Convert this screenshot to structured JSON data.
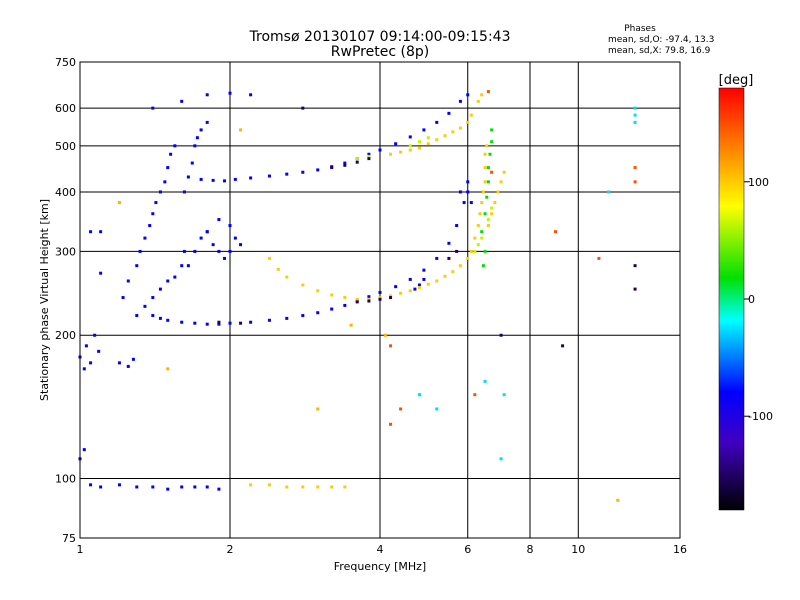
{
  "chart_data": {
    "type": "scatter",
    "title": "Tromsø 20130107 09:14:00-09:15:43",
    "subtitle": "RwPretec (8p)",
    "xlabel": "Frequency [MHz]",
    "ylabel": "Stationary phase Virtual Height [km]",
    "x_scale": "log2",
    "y_scale": "log",
    "xlim": [
      1,
      16
    ],
    "ylim": [
      75,
      750
    ],
    "x_ticks": [
      "1",
      "2",
      "4",
      "6",
      "8",
      "10",
      "16"
    ],
    "x_tick_values": [
      1,
      2,
      4,
      6,
      8,
      10,
      16
    ],
    "x_grid_values": [
      1,
      2,
      4,
      6,
      8,
      10,
      16
    ],
    "y_ticks": [
      "75",
      "100",
      "200",
      "300",
      "400",
      "500",
      "600",
      "750"
    ],
    "y_tick_values": [
      75,
      100,
      200,
      300,
      400,
      500,
      600,
      750
    ],
    "grid": true,
    "phases_title": "Phases",
    "phases_o": "mean, sd,O:  -97.4, 13.3",
    "phases_x": "mean, sd,X:  79.8, 16.9",
    "colorbar": {
      "label": "[deg]",
      "range": [
        -180,
        180
      ],
      "ticks": [
        "100",
        "0",
        "-100"
      ],
      "tick_values": [
        100,
        0,
        -100
      ]
    },
    "series": [
      {
        "phase_deg": -100,
        "points": [
          [
            1.0,
            180
          ],
          [
            1.02,
            170
          ],
          [
            1.03,
            190
          ],
          [
            1.05,
            175
          ],
          [
            1.07,
            200
          ],
          [
            1.09,
            185
          ],
          [
            1.1,
            270
          ],
          [
            1.2,
            175
          ],
          [
            1.25,
            172
          ],
          [
            1.28,
            178
          ],
          [
            1.22,
            240
          ],
          [
            1.25,
            260
          ],
          [
            1.3,
            280
          ],
          [
            1.32,
            300
          ],
          [
            1.35,
            320
          ],
          [
            1.38,
            340
          ],
          [
            1.4,
            360
          ],
          [
            1.42,
            380
          ],
          [
            1.45,
            400
          ],
          [
            1.48,
            420
          ],
          [
            1.5,
            450
          ],
          [
            1.52,
            480
          ],
          [
            1.55,
            500
          ],
          [
            1.3,
            220
          ],
          [
            1.35,
            230
          ],
          [
            1.4,
            240
          ],
          [
            1.45,
            250
          ],
          [
            1.5,
            260
          ],
          [
            1.55,
            265
          ],
          [
            1.6,
            280
          ],
          [
            1.62,
            300
          ],
          [
            1.62,
            400
          ],
          [
            1.65,
            430
          ],
          [
            1.68,
            460
          ],
          [
            1.7,
            500
          ],
          [
            1.72,
            520
          ],
          [
            1.75,
            540
          ],
          [
            1.8,
            560
          ],
          [
            1.65,
            280
          ],
          [
            1.7,
            300
          ],
          [
            1.75,
            320
          ],
          [
            1.8,
            330
          ],
          [
            1.85,
            310
          ],
          [
            1.9,
            300
          ],
          [
            1.95,
            290
          ],
          [
            2.0,
            300
          ],
          [
            2.05,
            320
          ],
          [
            2.1,
            310
          ],
          [
            1.8,
            330
          ],
          [
            1.9,
            350
          ],
          [
            2.0,
            340
          ],
          [
            1.4,
            220
          ],
          [
            1.45,
            217
          ],
          [
            1.5,
            215
          ],
          [
            1.6,
            213
          ],
          [
            1.7,
            212
          ],
          [
            1.8,
            211
          ],
          [
            1.9,
            211
          ],
          [
            2.0,
            212
          ],
          [
            2.2,
            213
          ],
          [
            2.4,
            215
          ],
          [
            2.6,
            217
          ],
          [
            2.8,
            220
          ],
          [
            3.0,
            223
          ],
          [
            3.2,
            227
          ],
          [
            3.4,
            231
          ],
          [
            3.6,
            236
          ],
          [
            3.8,
            241
          ],
          [
            4.0,
            246
          ],
          [
            4.3,
            253
          ],
          [
            4.6,
            262
          ],
          [
            4.9,
            274
          ],
          [
            5.2,
            290
          ],
          [
            5.5,
            312
          ],
          [
            5.7,
            340
          ],
          [
            5.9,
            380
          ],
          [
            6.0,
            400
          ],
          [
            1.75,
            425
          ],
          [
            1.85,
            423
          ],
          [
            1.95,
            422
          ],
          [
            2.05,
            425
          ],
          [
            2.2,
            428
          ],
          [
            2.4,
            432
          ],
          [
            2.6,
            436
          ],
          [
            2.8,
            440
          ],
          [
            3.0,
            445
          ],
          [
            3.2,
            452
          ],
          [
            3.4,
            460
          ],
          [
            3.6,
            470
          ],
          [
            3.8,
            480
          ],
          [
            4.0,
            490
          ],
          [
            4.3,
            505
          ],
          [
            4.6,
            522
          ],
          [
            4.9,
            540
          ],
          [
            5.2,
            560
          ],
          [
            5.5,
            585
          ],
          [
            5.8,
            620
          ],
          [
            6.0,
            640
          ],
          [
            1.4,
            600
          ],
          [
            1.6,
            620
          ],
          [
            1.8,
            640
          ],
          [
            2.0,
            645
          ],
          [
            2.2,
            640
          ],
          [
            1.05,
            97
          ],
          [
            1.1,
            96
          ],
          [
            1.2,
            97
          ],
          [
            1.3,
            96
          ],
          [
            1.4,
            96
          ],
          [
            1.5,
            95
          ],
          [
            1.6,
            96
          ],
          [
            1.7,
            96
          ],
          [
            1.8,
            96
          ],
          [
            1.9,
            95
          ],
          [
            1.0,
            110
          ],
          [
            1.02,
            115
          ],
          [
            1.1,
            330
          ],
          [
            1.05,
            330
          ],
          [
            5.8,
            400
          ],
          [
            6.0,
            420
          ],
          [
            6.1,
            380
          ],
          [
            4.7,
            250
          ],
          [
            4.8,
            255
          ],
          [
            4.9,
            262
          ]
        ]
      },
      {
        "phase_deg": 100,
        "points": [
          [
            2.4,
            290
          ],
          [
            2.5,
            275
          ],
          [
            2.6,
            265
          ],
          [
            2.8,
            255
          ],
          [
            3.0,
            248
          ],
          [
            3.2,
            243
          ],
          [
            3.4,
            240
          ],
          [
            3.6,
            238
          ],
          [
            3.8,
            238
          ],
          [
            4.0,
            240
          ],
          [
            4.2,
            242
          ],
          [
            4.4,
            245
          ],
          [
            4.6,
            248
          ],
          [
            4.8,
            252
          ],
          [
            5.0,
            256
          ],
          [
            5.2,
            260
          ],
          [
            5.4,
            266
          ],
          [
            5.6,
            272
          ],
          [
            5.8,
            280
          ],
          [
            6.0,
            290
          ],
          [
            6.1,
            300
          ],
          [
            6.2,
            320
          ],
          [
            6.3,
            340
          ],
          [
            6.35,
            360
          ],
          [
            6.4,
            380
          ],
          [
            6.45,
            400
          ],
          [
            6.5,
            420
          ],
          [
            6.5,
            450
          ],
          [
            6.5,
            480
          ],
          [
            6.55,
            500
          ],
          [
            4.2,
            480
          ],
          [
            4.4,
            485
          ],
          [
            4.6,
            490
          ],
          [
            4.8,
            495
          ],
          [
            5.0,
            505
          ],
          [
            5.2,
            515
          ],
          [
            5.4,
            525
          ],
          [
            5.6,
            535
          ],
          [
            5.8,
            545
          ],
          [
            6.0,
            560
          ],
          [
            6.1,
            580
          ],
          [
            6.3,
            620
          ],
          [
            6.4,
            640
          ],
          [
            2.2,
            97
          ],
          [
            2.4,
            97
          ],
          [
            2.6,
            96
          ],
          [
            2.8,
            96
          ],
          [
            3.0,
            96
          ],
          [
            3.2,
            96
          ],
          [
            3.4,
            96
          ],
          [
            6.6,
            340
          ],
          [
            6.7,
            360
          ],
          [
            6.8,
            380
          ],
          [
            6.9,
            400
          ],
          [
            7.0,
            420
          ],
          [
            7.1,
            440
          ]
        ]
      },
      {
        "phase_deg": 0,
        "points": [
          [
            6.4,
            330
          ],
          [
            6.5,
            360
          ],
          [
            6.55,
            390
          ],
          [
            6.6,
            420
          ],
          [
            6.6,
            450
          ],
          [
            6.65,
            480
          ],
          [
            6.7,
            510
          ],
          [
            6.7,
            540
          ],
          [
            6.5,
            300
          ],
          [
            6.45,
            280
          ]
        ]
      },
      {
        "phase_deg": 60,
        "points": [
          [
            6.2,
            300
          ],
          [
            6.3,
            310
          ],
          [
            6.4,
            320
          ],
          [
            6.6,
            350
          ],
          [
            6.7,
            370
          ],
          [
            4.6,
            500
          ],
          [
            4.8,
            510
          ],
          [
            5.0,
            520
          ],
          [
            3.6,
            470
          ],
          [
            3.8,
            475
          ]
        ]
      },
      {
        "phase_deg": -150,
        "points": [
          [
            3.2,
            450
          ],
          [
            3.4,
            455
          ],
          [
            3.6,
            462
          ],
          [
            3.8,
            470
          ],
          [
            3.6,
            235
          ],
          [
            3.8,
            236
          ],
          [
            4.0,
            238
          ],
          [
            4.2,
            240
          ],
          [
            2.8,
            600
          ],
          [
            1.9,
            213
          ],
          [
            2.1,
            212
          ],
          [
            5.5,
            290
          ],
          [
            5.7,
            300
          ],
          [
            13.0,
            280
          ],
          [
            13.0,
            250
          ],
          [
            7.0,
            200
          ],
          [
            9.3,
            190
          ]
        ]
      },
      {
        "phase_deg": -40,
        "points": [
          [
            4.8,
            150
          ],
          [
            5.2,
            140
          ],
          [
            6.5,
            160
          ],
          [
            7.1,
            150
          ],
          [
            7.0,
            110
          ],
          [
            13.0,
            600
          ],
          [
            13.0,
            580
          ],
          [
            13.0,
            560
          ],
          [
            11.5,
            400
          ]
        ]
      },
      {
        "phase_deg": 150,
        "points": [
          [
            4.2,
            130
          ],
          [
            4.4,
            140
          ],
          [
            6.2,
            150
          ],
          [
            9.0,
            330
          ],
          [
            11.0,
            290
          ],
          [
            13.0,
            450
          ],
          [
            13.0,
            420
          ],
          [
            6.6,
            650
          ],
          [
            6.7,
            440
          ],
          [
            4.2,
            190
          ]
        ]
      },
      {
        "phase_deg": 110,
        "points": [
          [
            12.0,
            90
          ],
          [
            1.5,
            170
          ],
          [
            1.2,
            380
          ],
          [
            3.5,
            210
          ],
          [
            4.1,
            200
          ],
          [
            2.1,
            540
          ],
          [
            3.0,
            140
          ]
        ]
      }
    ]
  }
}
